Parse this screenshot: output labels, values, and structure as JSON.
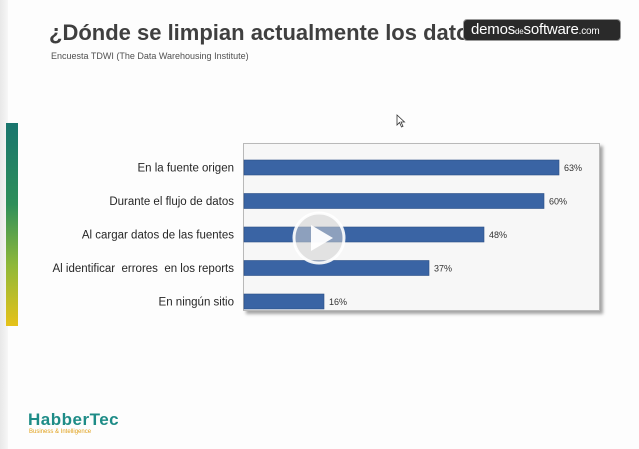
{
  "slide": {
    "title": "¿Dónde se limpian actualmente los datos?",
    "subtitle": "Encuesta TDWI (The Data Warehousing Institute)"
  },
  "watermark": {
    "part1": "demos",
    "part2": "de",
    "part3": "software",
    "part4": ".com"
  },
  "logo": {
    "name": "HabberTec",
    "tagline": "Business & Intelligence"
  },
  "video": {
    "play_icon": "play-icon"
  },
  "colors": {
    "bar": "#3a64a4",
    "accent": "#1e8c87",
    "logo_tag": "#e0a01a"
  },
  "chart_data": {
    "type": "bar",
    "orientation": "horizontal",
    "categories": [
      "En la fuente origen",
      "Durante el flujo de datos",
      "Al cargar datos de las fuentes",
      "Al identificar  errores  en los reports",
      "En ningún sitio"
    ],
    "values": [
      63,
      60,
      48,
      37,
      16
    ],
    "value_labels": [
      "63%",
      "60%",
      "48%",
      "37%",
      "16%"
    ],
    "xlim": [
      0,
      100
    ],
    "grid": false,
    "legend": "none"
  }
}
